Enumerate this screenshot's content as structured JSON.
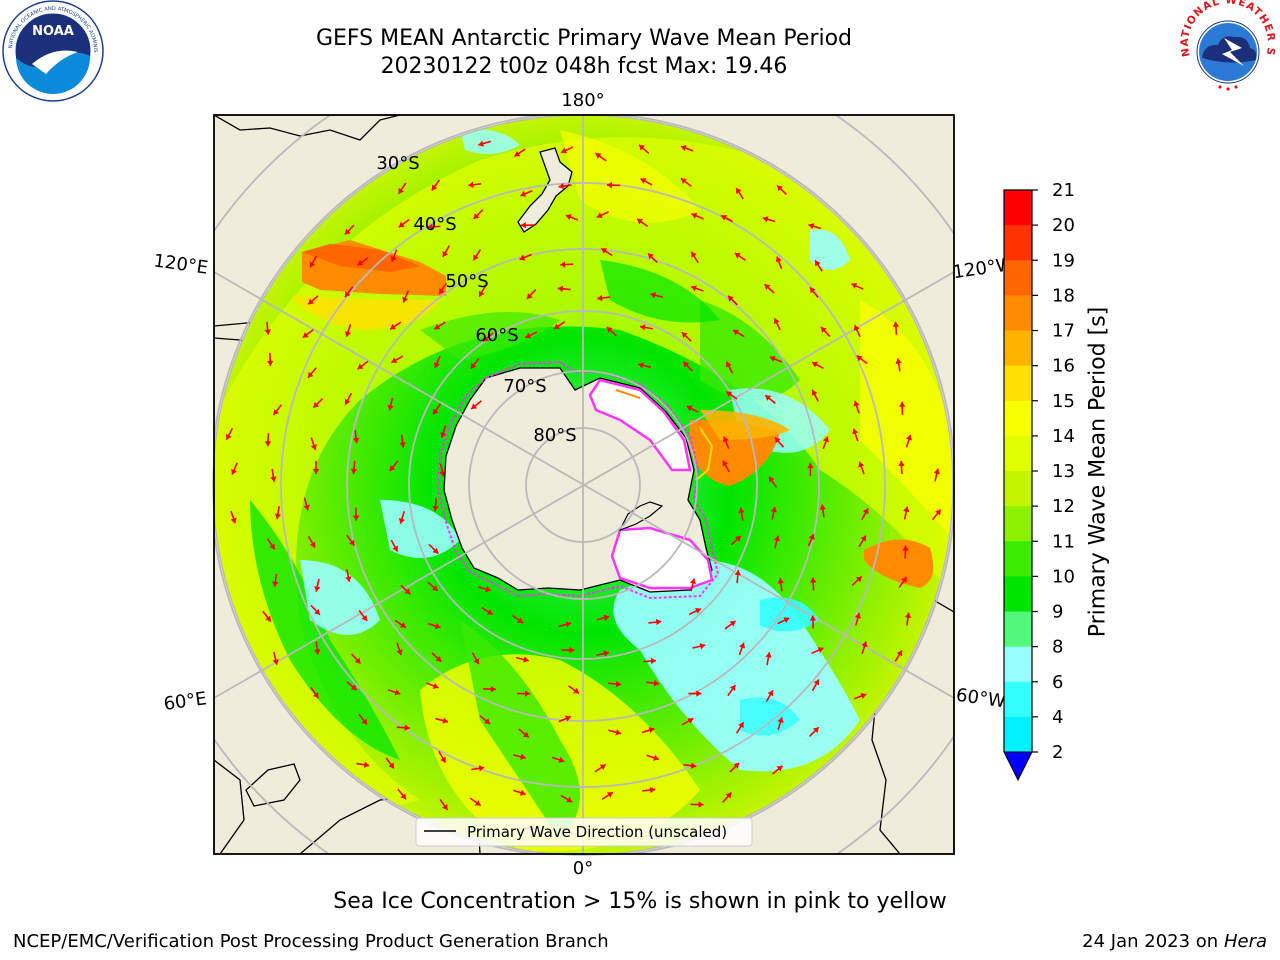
{
  "title": {
    "line1": "GEFS MEAN Antarctic Primary Wave Mean Period",
    "line2": "20230122 t00z 048h fcst   Max: 19.46"
  },
  "logos": {
    "left": {
      "name": "NOAA",
      "ring_text": "NATIONAL OCEANIC AND ATMOSPHERIC ADMINISTRATION · U.S. DEPARTMENT OF COMMERCE"
    },
    "right": {
      "name": "NATIONAL WEATHER SERVICE"
    }
  },
  "map": {
    "projection": "south-polar-stereographic",
    "longitude_labels": [
      "180°",
      "120°E",
      "120°W",
      "60°E",
      "60°W",
      "0°"
    ],
    "latitude_labels": [
      "30°S",
      "40°S",
      "50°S",
      "60°S",
      "70°S",
      "80°S"
    ],
    "legend_label": "Primary Wave Direction (unscaled)",
    "colors": {
      "land": "#efecdc",
      "coast": "#000000",
      "grid": "#b9b9b9",
      "arrow": "#ff0000",
      "sea_ice_edge": "#ff33ff"
    }
  },
  "colorbar": {
    "title": "Primary Wave Mean Period [s]",
    "ticks": [
      "21",
      "20",
      "19",
      "18",
      "17",
      "16",
      "15",
      "14",
      "13",
      "12",
      "11",
      "10",
      "9",
      "8",
      "6",
      "4",
      "2"
    ],
    "colors": [
      "#ff0000",
      "#ff3300",
      "#ff6600",
      "#ff8c00",
      "#ffb300",
      "#ffe000",
      "#f7ff00",
      "#dfff00",
      "#c3f500",
      "#8cf000",
      "#3aea00",
      "#00e500",
      "#52f97a",
      "#99ffff",
      "#33ffff",
      "#00f0ff",
      "#0088ff",
      "#0000ff"
    ]
  },
  "footer": {
    "sea_ice_note": "Sea Ice Concentration > 15% is shown in pink to yellow",
    "credit": "NCEP/EMC/Verification Post Processing Product Generation Branch",
    "date": "24 Jan 2023 on ",
    "machine": "Hera"
  }
}
